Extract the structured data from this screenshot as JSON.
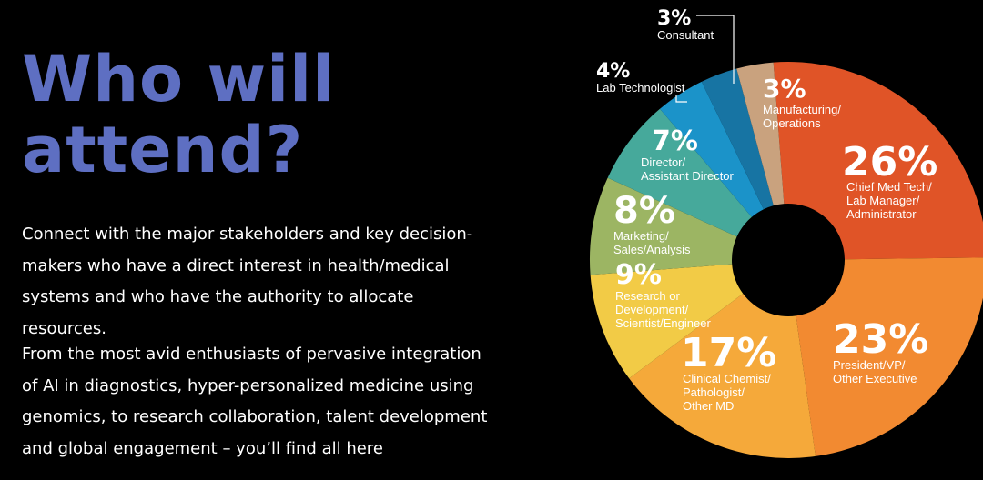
{
  "headline": {
    "line1": "Who will",
    "line2": "attend?"
  },
  "paragraphs": [
    "Connect with the major stakeholders and key decision-makers who have a direct interest in health/medical systems and who have the authority to allocate resources.",
    "From the most avid enthusiasts of pervasive integration of AI in diagnostics, hyper-personalized medicine using genomics, to research collaboration, talent development and global engagement – you’ll find all here"
  ],
  "colors": {
    "background": "#000000",
    "headline": "#5e6fc2",
    "text": "#ffffff"
  },
  "chart_data": {
    "type": "pie",
    "donut": true,
    "title": "",
    "slices": [
      {
        "value": 26,
        "pct_label": "26%",
        "label_lines": [
          "Chief Med Tech/",
          "Lab Manager/",
          "Administrator"
        ],
        "color": "#e05427"
      },
      {
        "value": 23,
        "pct_label": "23%",
        "label_lines": [
          "President/VP/",
          "Other Executive"
        ],
        "color": "#f28a31"
      },
      {
        "value": 17,
        "pct_label": "17%",
        "label_lines": [
          "Clinical Chemist/",
          "Pathologist/",
          "Other MD"
        ],
        "color": "#f5a93a"
      },
      {
        "value": 9,
        "pct_label": "9%",
        "label_lines": [
          "Research or",
          "Development/",
          "Scientist/Engineer"
        ],
        "color": "#f2cb46"
      },
      {
        "value": 8,
        "pct_label": "8%",
        "label_lines": [
          "Marketing/",
          "Sales/Analysis"
        ],
        "color": "#9cb563"
      },
      {
        "value": 7,
        "pct_label": "7%",
        "label_lines": [
          "Director/",
          "Assistant Director"
        ],
        "color": "#46a99b"
      },
      {
        "value": 4,
        "pct_label": "4%",
        "label_lines": [
          "Lab Technologist"
        ],
        "color": "#1b93c9"
      },
      {
        "value": 3,
        "pct_label": "3%",
        "label_lines": [
          "Consultant"
        ],
        "color": "#1774a3"
      },
      {
        "value": 3,
        "pct_label": "3%",
        "label_lines": [
          "Manufacturing/",
          "Operations"
        ],
        "color": "#c9a27e"
      }
    ]
  }
}
